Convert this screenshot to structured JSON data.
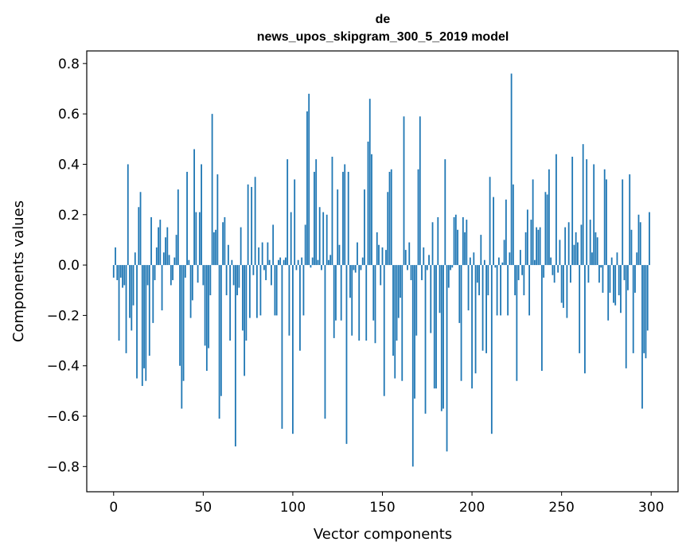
{
  "chart_data": {
    "type": "bar",
    "title_line1": "de",
    "title_line2": "news_upos_skipgram_300_5_2019 model",
    "xlabel": "Vector components",
    "ylabel": "Components values",
    "xlim": [
      -15,
      315
    ],
    "ylim": [
      -0.9,
      0.85
    ],
    "xticks": [
      0,
      50,
      100,
      150,
      200,
      250,
      300
    ],
    "xtick_labels": [
      "0",
      "50",
      "100",
      "150",
      "200",
      "250",
      "300"
    ],
    "yticks": [
      -0.8,
      -0.6,
      -0.4,
      -0.2,
      0.0,
      0.2,
      0.4,
      0.6,
      0.8
    ],
    "ytick_labels": [
      "−0.8",
      "−0.6",
      "−0.4",
      "−0.2",
      "0.0",
      "0.2",
      "0.4",
      "0.6",
      "0.8"
    ],
    "bar_color": "#1f77b4",
    "grid": false,
    "values": [
      -0.05,
      0.07,
      -0.06,
      -0.3,
      -0.05,
      -0.09,
      -0.08,
      -0.35,
      0.4,
      -0.21,
      -0.26,
      -0.16,
      0.05,
      -0.45,
      0.23,
      0.29,
      -0.48,
      -0.41,
      -0.46,
      -0.08,
      -0.36,
      0.19,
      -0.23,
      -0.06,
      0.07,
      0.15,
      0.18,
      -0.18,
      0.05,
      0.11,
      0.15,
      0.04,
      -0.08,
      -0.06,
      0.03,
      0.12,
      0.3,
      -0.4,
      -0.57,
      -0.46,
      -0.05,
      0.37,
      0.02,
      -0.21,
      -0.14,
      0.46,
      0.21,
      -0.07,
      0.21,
      0.4,
      -0.08,
      -0.32,
      -0.42,
      -0.33,
      -0.12,
      0.6,
      0.13,
      0.14,
      0.36,
      -0.61,
      -0.52,
      0.17,
      0.19,
      -0.12,
      0.08,
      -0.3,
      0.02,
      -0.08,
      -0.72,
      -0.12,
      -0.09,
      0.15,
      -0.26,
      -0.44,
      -0.3,
      0.32,
      -0.21,
      0.31,
      -0.04,
      0.35,
      -0.21,
      0.07,
      -0.2,
      0.09,
      -0.02,
      -0.06,
      0.09,
      0.02,
      -0.08,
      0.16,
      -0.2,
      -0.2,
      0.02,
      0.03,
      -0.65,
      0.02,
      0.03,
      0.42,
      -0.28,
      0.21,
      -0.67,
      0.34,
      -0.02,
      0.02,
      -0.34,
      0.03,
      -0.2,
      0.16,
      0.61,
      0.68,
      -0.01,
      0.03,
      0.37,
      0.42,
      0.02,
      0.23,
      -0.02,
      0.21,
      -0.61,
      0.2,
      0.02,
      0.04,
      0.43,
      -0.29,
      -0.22,
      0.3,
      0.08,
      -0.22,
      0.37,
      0.4,
      -0.71,
      0.37,
      -0.13,
      -0.28,
      -0.02,
      -0.03,
      0.09,
      -0.3,
      -0.02,
      0.03,
      0.3,
      -0.3,
      0.49,
      0.66,
      0.44,
      -0.22,
      -0.31,
      0.13,
      0.08,
      -0.08,
      0.07,
      -0.52,
      0.06,
      0.29,
      0.37,
      0.38,
      -0.36,
      -0.45,
      -0.3,
      -0.21,
      -0.13,
      -0.46,
      0.59,
      0.06,
      -0.02,
      0.09,
      -0.06,
      -0.8,
      -0.53,
      -0.28,
      0.38,
      0.59,
      -0.06,
      0.07,
      -0.59,
      -0.02,
      0.04,
      -0.27,
      0.17,
      -0.49,
      -0.49,
      0.19,
      -0.19,
      -0.58,
      -0.57,
      0.42,
      -0.74,
      -0.09,
      -0.02,
      -0.01,
      0.19,
      0.2,
      0.14,
      -0.23,
      -0.46,
      0.19,
      0.13,
      0.18,
      -0.18,
      0.03,
      -0.49,
      0.05,
      -0.43,
      -0.07,
      -0.12,
      0.12,
      -0.34,
      0.02,
      -0.35,
      -0.12,
      0.35,
      -0.67,
      0.27,
      -0.01,
      -0.2,
      0.03,
      -0.2,
      0.01,
      0.1,
      0.26,
      -0.2,
      0.05,
      0.76,
      0.32,
      -0.12,
      -0.46,
      -0.06,
      0.06,
      -0.04,
      -0.12,
      0.13,
      0.22,
      -0.2,
      0.18,
      0.34,
      0.02,
      0.15,
      0.14,
      0.15,
      -0.42,
      -0.05,
      0.29,
      0.28,
      0.38,
      0.03,
      -0.04,
      -0.07,
      0.44,
      -0.03,
      0.1,
      -0.15,
      -0.17,
      0.15,
      -0.21,
      0.17,
      -0.07,
      0.43,
      0.08,
      0.13,
      0.09,
      -0.35,
      0.16,
      0.48,
      -0.43,
      0.42,
      -0.07,
      0.18,
      0.05,
      0.4,
      0.13,
      0.11,
      -0.07,
      -0.01,
      -0.11,
      0.38,
      0.34,
      -0.22,
      -0.11,
      0.03,
      -0.15,
      -0.16,
      0.05,
      -0.12,
      -0.19,
      0.34,
      -0.06,
      -0.41,
      -0.1,
      0.36,
      0.14,
      -0.35,
      -0.11,
      0.05,
      0.2,
      0.17,
      -0.57,
      -0.35,
      -0.37,
      -0.26,
      0.21
    ]
  }
}
